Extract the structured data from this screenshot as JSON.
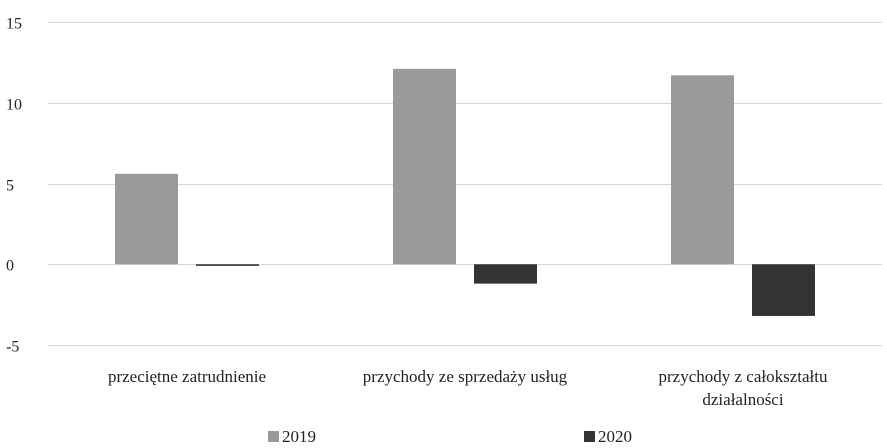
{
  "chart_data": {
    "type": "bar",
    "title": "",
    "xlabel": "",
    "ylabel": "",
    "ylim": [
      -5,
      15
    ],
    "yticks": [
      15,
      10,
      5,
      0,
      -5
    ],
    "grid": true,
    "legend_position": "bottom",
    "categories": [
      [
        "przeciętne zatrudnienie"
      ],
      [
        "przychody ze sprzedaży usług"
      ],
      [
        "przychody z całokształtu",
        "działalności"
      ]
    ],
    "series": [
      {
        "name": "2019",
        "color": "#9a9a9a",
        "values": [
          5.6,
          12.1,
          11.7
        ]
      },
      {
        "name": "2020",
        "color": "#333333",
        "values": [
          -0.1,
          -1.2,
          -3.2
        ]
      }
    ]
  }
}
